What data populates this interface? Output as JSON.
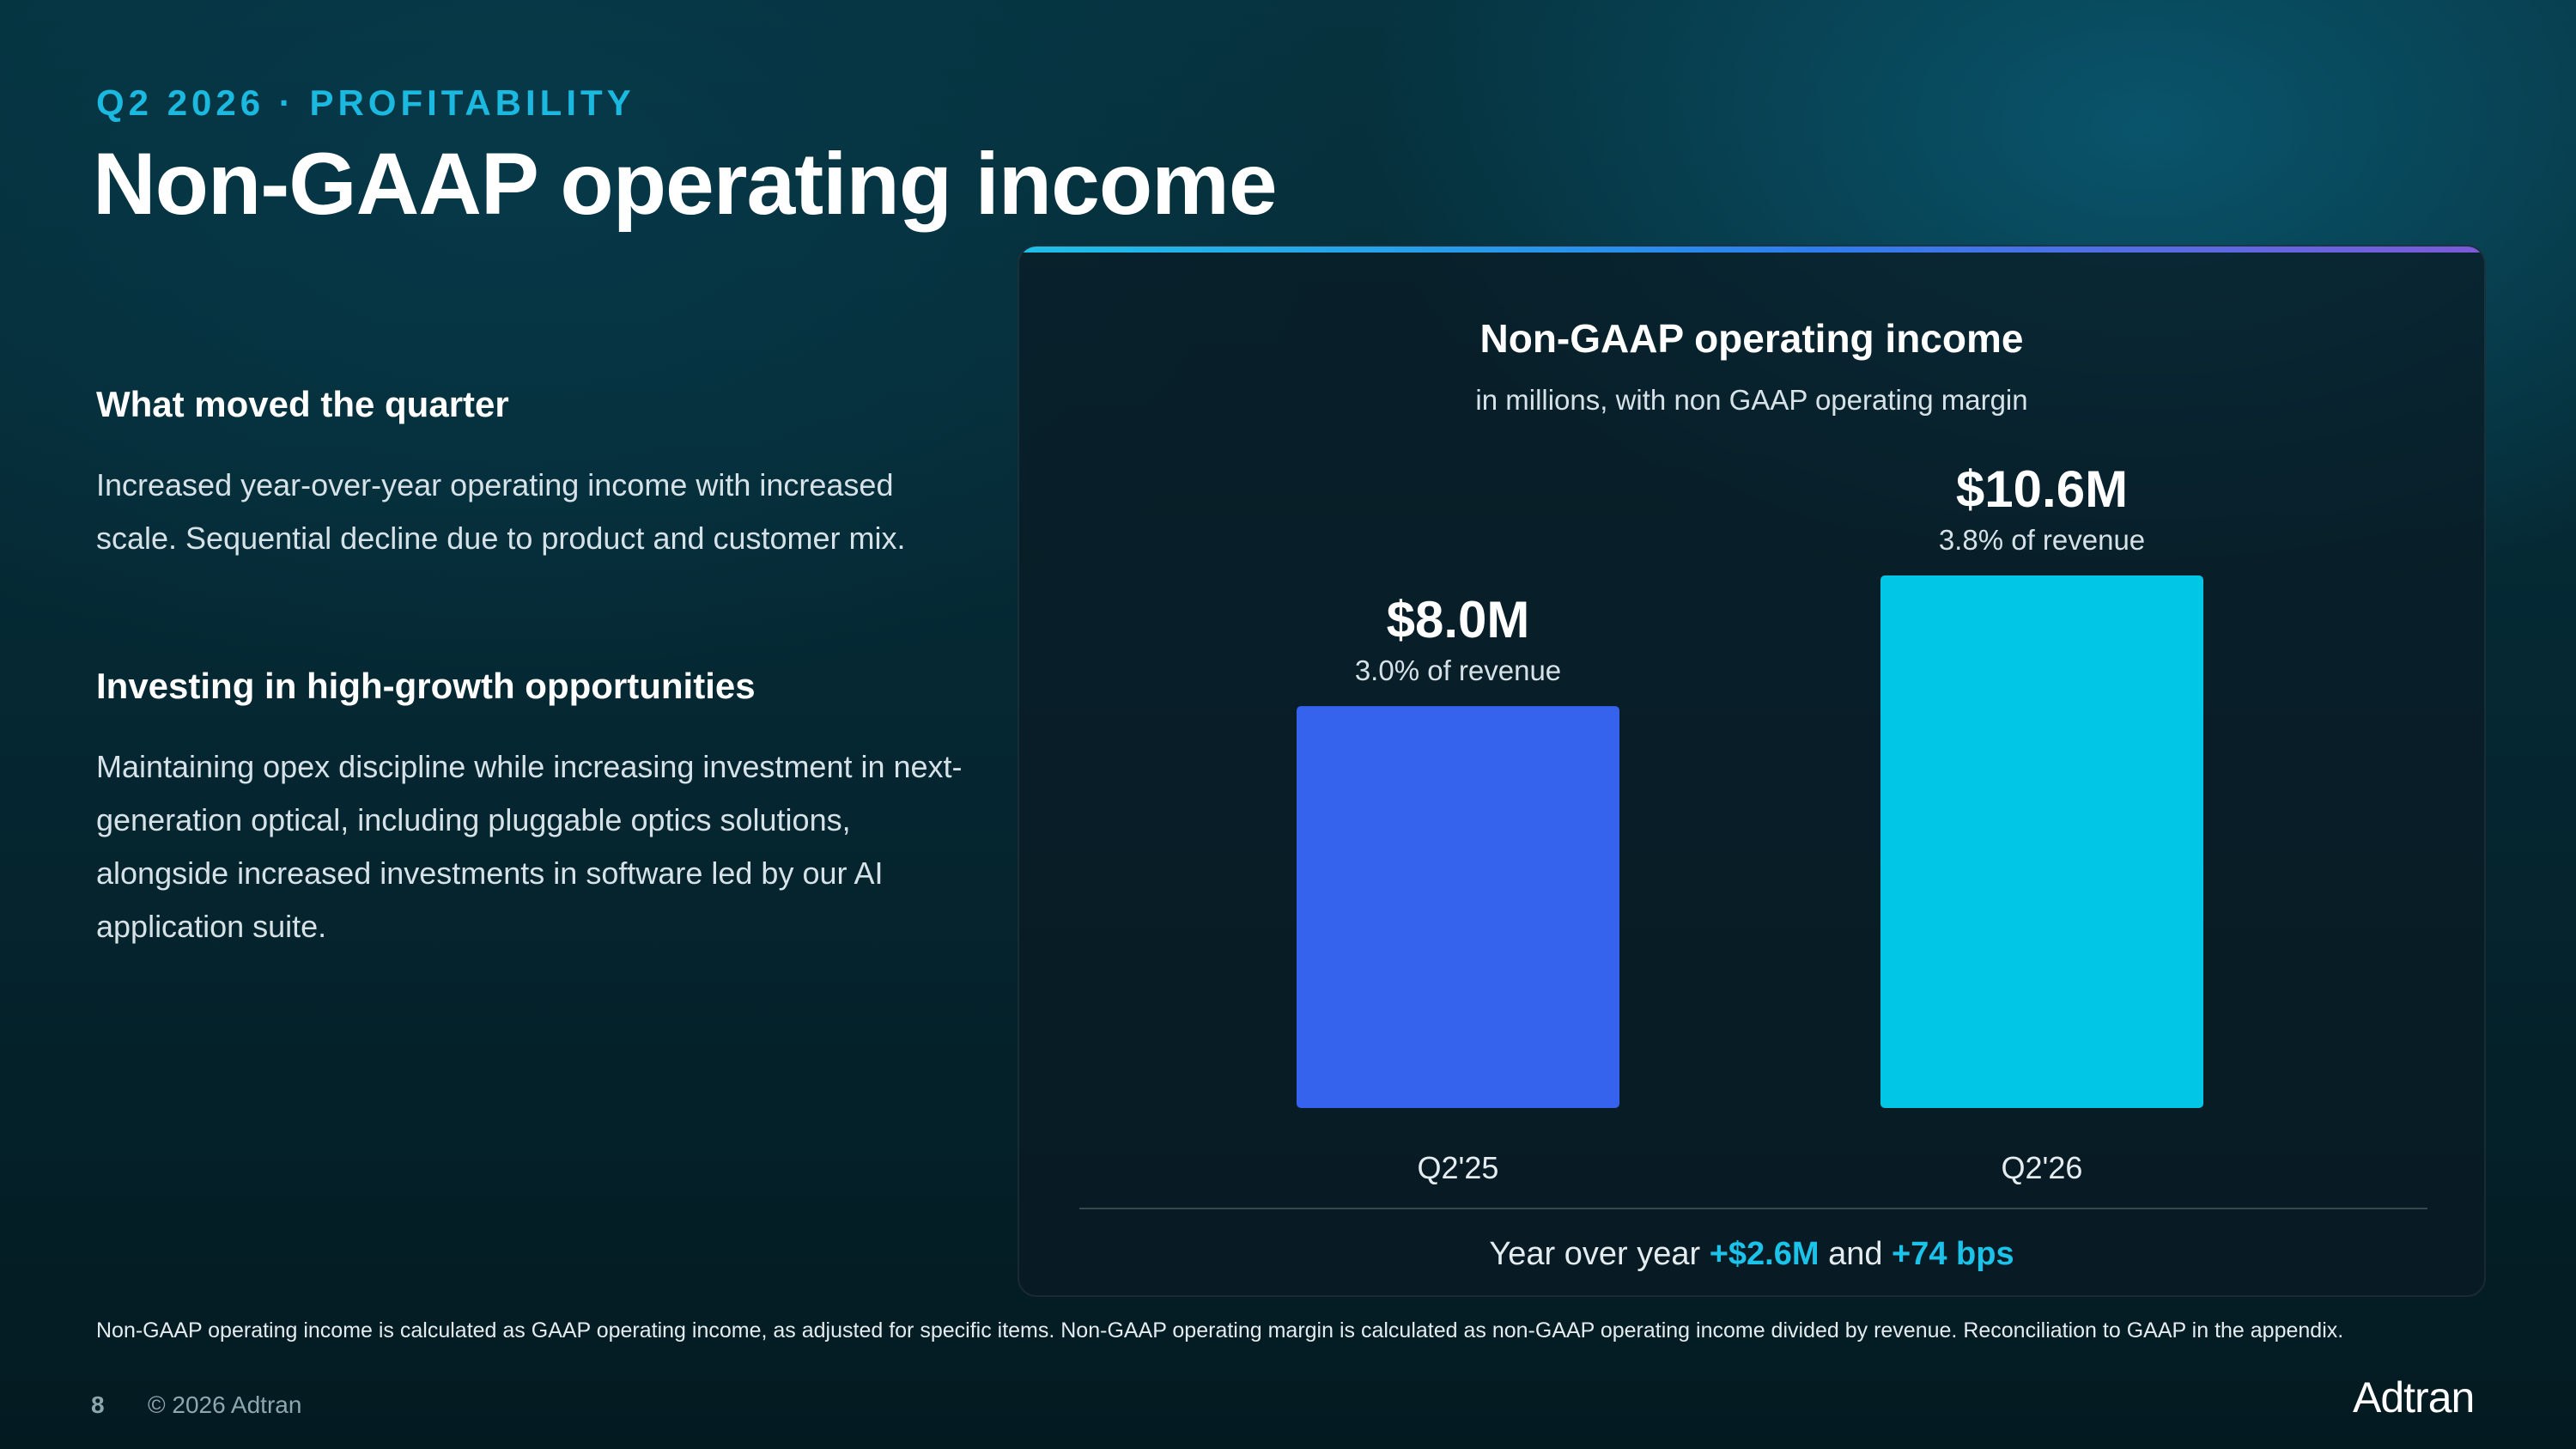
{
  "header": {
    "eyebrow": "Q2 2026 · PROFITABILITY",
    "title": "Non-GAAP operating income"
  },
  "sections": [
    {
      "heading": "What moved the quarter",
      "body": "Increased year-over-year operating income with increased scale. Sequential decline due to product and customer mix."
    },
    {
      "heading": "Investing in high-growth opportunities",
      "body": "Maintaining opex discipline while increasing investment in next-generation optical, including pluggable optics solutions, alongside increased investments in software led by our AI application suite."
    }
  ],
  "chart_data": {
    "type": "bar",
    "title": "Non-GAAP operating income",
    "subtitle": "in millions, with non GAAP operating margin",
    "categories": [
      "Q2'25",
      "Q2'26"
    ],
    "values": [
      8.0,
      10.6
    ],
    "value_labels": [
      "$8.0M",
      "$10.6M"
    ],
    "margin_labels": [
      "3.0% of revenue",
      "3.8% of revenue"
    ],
    "colors": [
      "#3563ee",
      "#02c6e6"
    ],
    "ylim": [
      0,
      10.6
    ],
    "grid": false,
    "legend": "none"
  },
  "summary": {
    "prefix": "Year over year",
    "value_change": "+$2.6M",
    "connector": "and",
    "margin_change": "+74 bps"
  },
  "footnote": "Non-GAAP operating income is calculated as GAAP operating income, as adjusted for specific items. Non-GAAP operating margin is calculated as non-GAAP operating income divided by revenue. Reconciliation to GAAP in the appendix.",
  "footer": {
    "page": "8",
    "copyright": "© 2026 Adtran",
    "logo": "Adtran"
  }
}
